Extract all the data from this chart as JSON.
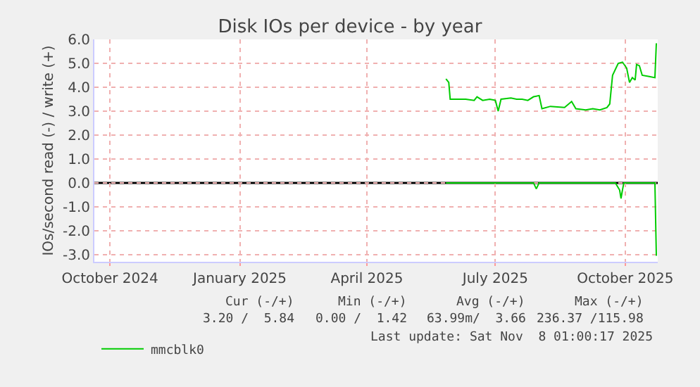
{
  "chart_data": {
    "type": "line",
    "title": "Disk IOs per device - by year",
    "ylabel": "IOs/second read (-) / write (+)",
    "xlim": [
      "2024-09-20",
      "2025-10-24"
    ],
    "xticks": [
      {
        "value": "2024-10-01",
        "label": "October 2024"
      },
      {
        "value": "2025-01-01",
        "label": "January 2025"
      },
      {
        "value": "2025-04-01",
        "label": "April 2025"
      },
      {
        "value": "2025-07-01",
        "label": "July 2025"
      },
      {
        "value": "2025-10-01",
        "label": "October 2025"
      }
    ],
    "ylim": [
      -3.3,
      6.0
    ],
    "yticks": [
      {
        "value": 6,
        "label": "6.0"
      },
      {
        "value": 5,
        "label": "5.0"
      },
      {
        "value": 4,
        "label": "4.0"
      },
      {
        "value": 3,
        "label": "3.0"
      },
      {
        "value": 2,
        "label": "2.0"
      },
      {
        "value": 1,
        "label": "1.0"
      },
      {
        "value": 0,
        "label": "0.0"
      },
      {
        "value": -1,
        "label": "-1.0"
      },
      {
        "value": -2,
        "label": "-2.0"
      },
      {
        "value": -3,
        "label": "-3.0"
      }
    ],
    "grid": true,
    "legend": "bottom left",
    "ref_lines": [
      {
        "axis": "y",
        "value": 0,
        "color": "#000000"
      }
    ],
    "series": [
      {
        "name": "mmcblk0",
        "color": "#00cc00",
        "x": [
          "2025-05-27",
          "2025-05-29",
          "2025-05-30",
          "2025-06-10",
          "2025-06-16",
          "2025-06-18",
          "2025-06-22",
          "2025-06-27",
          "2025-07-01",
          "2025-07-03",
          "2025-07-05",
          "2025-07-12",
          "2025-07-16",
          "2025-07-20",
          "2025-07-24",
          "2025-07-28",
          "2025-08-01",
          "2025-08-03",
          "2025-08-09",
          "2025-08-19",
          "2025-08-24",
          "2025-08-27",
          "2025-09-03",
          "2025-09-08",
          "2025-09-13",
          "2025-09-18",
          "2025-09-20",
          "2025-09-22",
          "2025-09-26",
          "2025-09-29",
          "2025-10-02",
          "2025-10-04",
          "2025-10-06",
          "2025-10-08",
          "2025-10-09",
          "2025-10-11",
          "2025-10-13",
          "2025-10-18",
          "2025-10-22",
          "2025-10-23"
        ],
        "values": [
          4.35,
          4.2,
          3.5,
          3.5,
          3.45,
          3.6,
          3.45,
          3.5,
          3.45,
          3.0,
          3.5,
          3.55,
          3.5,
          3.5,
          3.45,
          3.6,
          3.65,
          3.1,
          3.2,
          3.15,
          3.4,
          3.1,
          3.05,
          3.1,
          3.05,
          3.15,
          3.3,
          4.5,
          5.0,
          5.05,
          4.8,
          4.2,
          4.4,
          4.3,
          4.95,
          4.9,
          4.5,
          4.45,
          4.4,
          5.84
        ]
      },
      {
        "color": "#00cc00",
        "x": [
          "2025-05-27",
          "2025-07-28",
          "2025-07-30",
          "2025-08-01",
          "2025-09-24",
          "2025-09-27",
          "2025-09-28",
          "2025-09-29",
          "2025-09-30",
          "2025-10-22",
          "2025-10-23"
        ],
        "values": [
          0,
          0,
          -0.25,
          0,
          0,
          -0.3,
          -0.65,
          -0.3,
          0,
          0,
          -3.05
        ]
      }
    ],
    "annotations": [
      "Cur (-/+)",
      "Min (-/+)",
      "Avg (-/+)",
      "Max (-/+)",
      "3.20 /  5.84",
      "0.00 /  1.42",
      "63.99m/  3.66",
      "236.37 /115.98",
      "Last update: Sat Nov  8 01:00:17 2025"
    ]
  }
}
